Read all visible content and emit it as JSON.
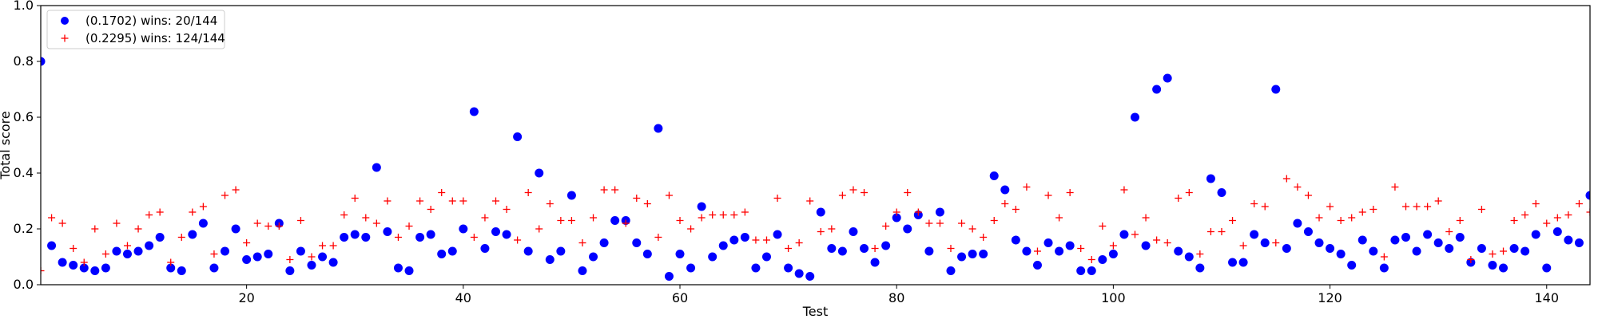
{
  "chart_data": {
    "type": "scatter",
    "title": "",
    "xlabel": "Test",
    "ylabel": "Total score",
    "xlim": [
      1,
      144
    ],
    "ylim": [
      0,
      1.0
    ],
    "x_ticks": [
      20,
      40,
      60,
      80,
      100,
      120,
      140
    ],
    "y_ticks": [
      0.0,
      0.2,
      0.4,
      0.6,
      0.8,
      1.0
    ],
    "grid": false,
    "legend_position": "top-left",
    "x": [
      1,
      2,
      3,
      4,
      5,
      6,
      7,
      8,
      9,
      10,
      11,
      12,
      13,
      14,
      15,
      16,
      17,
      18,
      19,
      20,
      21,
      22,
      23,
      24,
      25,
      26,
      27,
      28,
      29,
      30,
      31,
      32,
      33,
      34,
      35,
      36,
      37,
      38,
      39,
      40,
      41,
      42,
      43,
      44,
      45,
      46,
      47,
      48,
      49,
      50,
      51,
      52,
      53,
      54,
      55,
      56,
      57,
      58,
      59,
      60,
      61,
      62,
      63,
      64,
      65,
      66,
      67,
      68,
      69,
      70,
      71,
      72,
      73,
      74,
      75,
      76,
      77,
      78,
      79,
      80,
      81,
      82,
      83,
      84,
      85,
      86,
      87,
      88,
      89,
      90,
      91,
      92,
      93,
      94,
      95,
      96,
      97,
      98,
      99,
      100,
      101,
      102,
      103,
      104,
      105,
      106,
      107,
      108,
      109,
      110,
      111,
      112,
      113,
      114,
      115,
      116,
      117,
      118,
      119,
      120,
      121,
      122,
      123,
      124,
      125,
      126,
      127,
      128,
      129,
      130,
      131,
      132,
      133,
      134,
      135,
      136,
      137,
      138,
      139,
      140,
      141,
      142,
      143,
      144
    ],
    "series": [
      {
        "name": "(0.1702) wins: 20/144",
        "marker": "circle",
        "color": "#0000ff",
        "values": [
          0.8,
          0.14,
          0.08,
          0.07,
          0.06,
          0.05,
          0.06,
          0.12,
          0.11,
          0.12,
          0.14,
          0.17,
          0.06,
          0.05,
          0.18,
          0.22,
          0.06,
          0.12,
          0.2,
          0.09,
          0.1,
          0.11,
          0.22,
          0.05,
          0.12,
          0.07,
          0.1,
          0.08,
          0.17,
          0.18,
          0.17,
          0.42,
          0.19,
          0.06,
          0.05,
          0.17,
          0.18,
          0.11,
          0.12,
          0.2,
          0.62,
          0.13,
          0.19,
          0.18,
          0.53,
          0.12,
          0.4,
          0.09,
          0.12,
          0.32,
          0.05,
          0.1,
          0.15,
          0.23,
          0.23,
          0.15,
          0.11,
          0.56,
          0.03,
          0.11,
          0.06,
          0.28,
          0.1,
          0.14,
          0.16,
          0.17,
          0.06,
          0.1,
          0.18,
          0.06,
          0.04,
          0.03,
          0.26,
          0.13,
          0.12,
          0.19,
          0.13,
          0.08,
          0.14,
          0.24,
          0.2,
          0.25,
          0.12,
          0.26,
          0.05,
          0.1,
          0.11,
          0.11,
          0.39,
          0.34,
          0.16,
          0.12,
          0.07,
          0.15,
          0.12,
          0.14,
          0.05,
          0.05,
          0.09,
          0.11,
          0.18,
          0.6,
          0.14,
          0.7,
          0.74,
          0.12,
          0.1,
          0.06,
          0.38,
          0.33,
          0.08,
          0.08,
          0.18,
          0.15,
          0.7,
          0.13,
          0.22,
          0.19,
          0.15,
          0.13,
          0.11,
          0.07,
          0.16,
          0.12,
          0.06,
          0.16,
          0.17,
          0.12,
          0.18,
          0.15,
          0.13,
          0.17,
          0.08,
          0.13,
          0.07,
          0.06,
          0.13,
          0.12,
          0.18,
          0.06,
          0.19,
          0.16,
          0.15,
          0.32
        ]
      },
      {
        "name": "(0.2295) wins: 124/144",
        "marker": "plus",
        "color": "#ff0000",
        "values": [
          0.05,
          0.24,
          0.22,
          0.13,
          0.08,
          0.2,
          0.11,
          0.22,
          0.14,
          0.2,
          0.25,
          0.26,
          0.08,
          0.17,
          0.26,
          0.28,
          0.11,
          0.32,
          0.34,
          0.15,
          0.22,
          0.21,
          0.21,
          0.09,
          0.23,
          0.1,
          0.14,
          0.14,
          0.25,
          0.31,
          0.24,
          0.22,
          0.3,
          0.17,
          0.21,
          0.3,
          0.27,
          0.33,
          0.3,
          0.3,
          0.17,
          0.24,
          0.3,
          0.27,
          0.16,
          0.33,
          0.2,
          0.29,
          0.23,
          0.23,
          0.15,
          0.24,
          0.34,
          0.34,
          0.22,
          0.31,
          0.29,
          0.17,
          0.32,
          0.23,
          0.2,
          0.24,
          0.25,
          0.25,
          0.25,
          0.26,
          0.16,
          0.16,
          0.31,
          0.13,
          0.15,
          0.3,
          0.19,
          0.2,
          0.32,
          0.34,
          0.33,
          0.13,
          0.21,
          0.26,
          0.33,
          0.26,
          0.22,
          0.22,
          0.13,
          0.22,
          0.2,
          0.17,
          0.23,
          0.29,
          0.27,
          0.35,
          0.12,
          0.32,
          0.24,
          0.33,
          0.13,
          0.09,
          0.21,
          0.14,
          0.34,
          0.18,
          0.24,
          0.16,
          0.15,
          0.31,
          0.33,
          0.11,
          0.19,
          0.19,
          0.23,
          0.14,
          0.29,
          0.28,
          0.15,
          0.38,
          0.35,
          0.32,
          0.24,
          0.28,
          0.23,
          0.24,
          0.26,
          0.27,
          0.1,
          0.35,
          0.28,
          0.28,
          0.28,
          0.3,
          0.19,
          0.23,
          0.09,
          0.27,
          0.11,
          0.12,
          0.23,
          0.25,
          0.29,
          0.22,
          0.24,
          0.25,
          0.29,
          0.26
        ]
      }
    ]
  }
}
